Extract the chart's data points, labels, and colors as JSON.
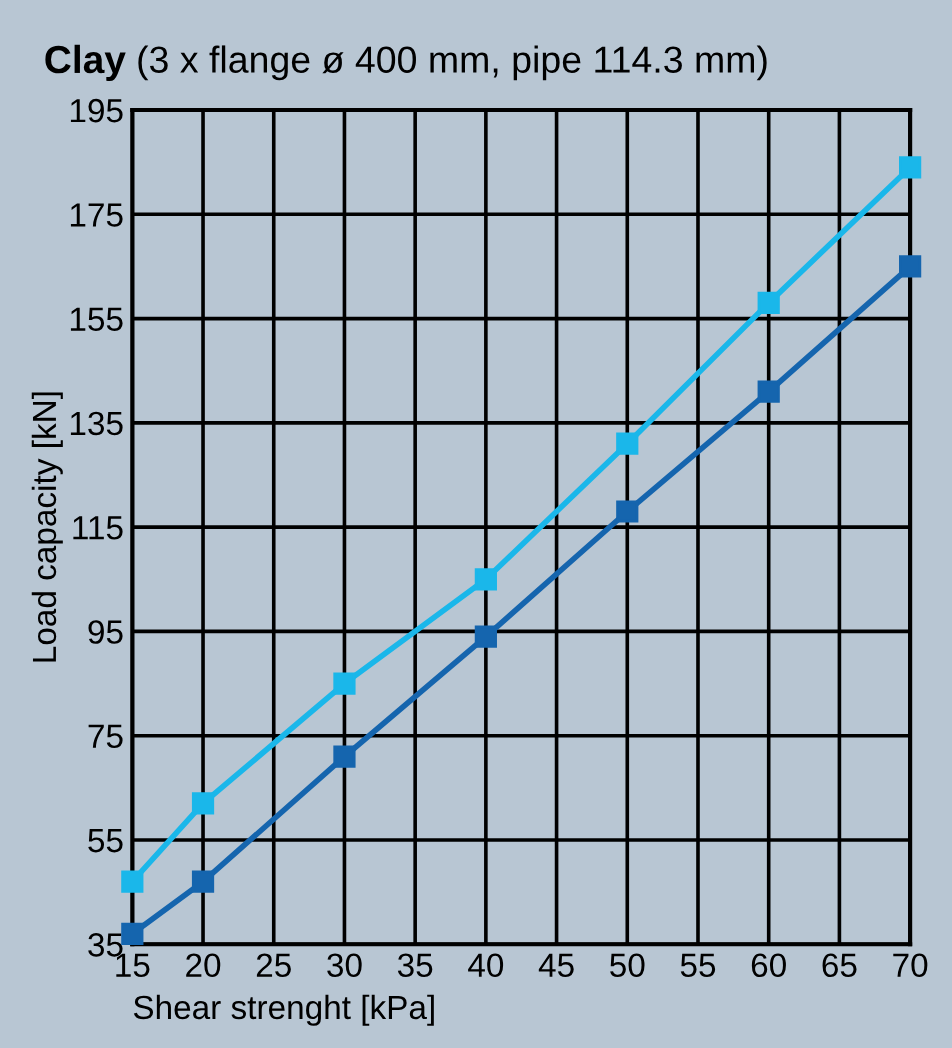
{
  "chart_data": {
    "type": "line",
    "title": "Clay",
    "subtitle": "(3 x flange ø 400 mm, pipe 114.3 mm)",
    "xlabel": "Shear strenght [kPa]",
    "ylabel": "Load capacity [kN]",
    "x": [
      15,
      20,
      30,
      40,
      50,
      60,
      70
    ],
    "series": [
      {
        "color": "#1ab7ea",
        "values": [
          47,
          62,
          85,
          105,
          131,
          158,
          184
        ]
      },
      {
        "color": "#1565ae",
        "values": [
          37,
          47,
          71,
          94,
          118,
          141,
          165
        ]
      }
    ],
    "xlim": [
      15,
      70
    ],
    "ylim": [
      35,
      195
    ],
    "xticks": [
      15,
      20,
      25,
      30,
      35,
      40,
      45,
      50,
      55,
      60,
      65,
      70
    ],
    "yticks": [
      35,
      55,
      75,
      95,
      115,
      135,
      155,
      175,
      195
    ],
    "grid": true,
    "marker": "square",
    "line_style": "solid",
    "legend": false
  }
}
